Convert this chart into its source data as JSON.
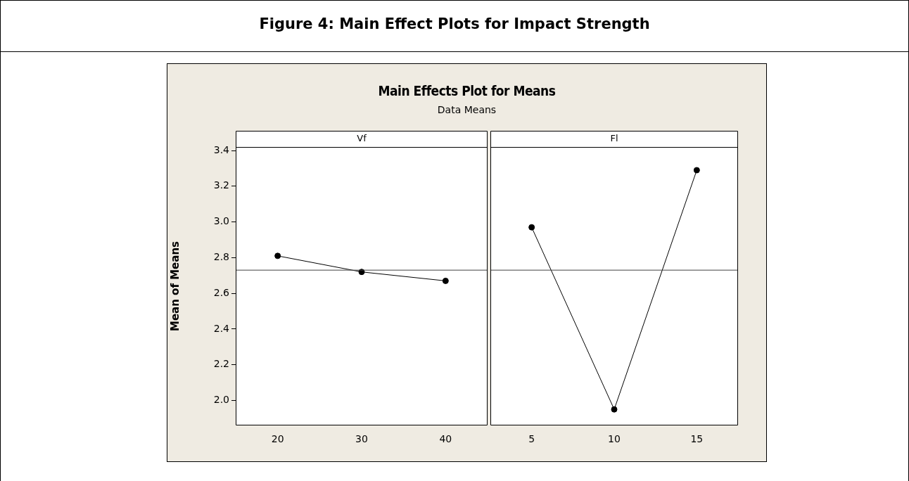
{
  "chart_data": [
    {
      "type": "line",
      "title": "Vf",
      "ylabel": "Mean of Means",
      "annotations": [
        "Figure 4: Main Effect Plots for Impact Strength",
        "Main Effects Plot for Means",
        "Data Means"
      ],
      "categories": [
        "20",
        "30",
        "40"
      ],
      "values": [
        2.81,
        2.72,
        2.67
      ],
      "color": "#000000",
      "marker": "circle",
      "ylim": [
        1.86,
        3.42
      ],
      "yticks": [
        {
          "value": 2,
          "label": "2.0"
        },
        2.2,
        2.4,
        2.6,
        2.8,
        {
          "value": 3,
          "label": "3.0"
        },
        3.2,
        3.4
      ],
      "grid": false,
      "legend": false,
      "ref_lines": [
        {
          "axis": "y",
          "value": 2.73,
          "color": "#404040"
        }
      ]
    },
    {
      "type": "line",
      "title": "Fl",
      "categories": [
        "5",
        "10",
        "15"
      ],
      "values": [
        2.97,
        1.95,
        3.29
      ],
      "color": "#000000",
      "marker": "circle",
      "ylim": [
        1.86,
        3.42
      ],
      "grid": false,
      "legend": false,
      "tick_labels": "x",
      "ref_lines": [
        {
          "axis": "y",
          "value": 2.73,
          "color": "#404040"
        }
      ]
    }
  ]
}
